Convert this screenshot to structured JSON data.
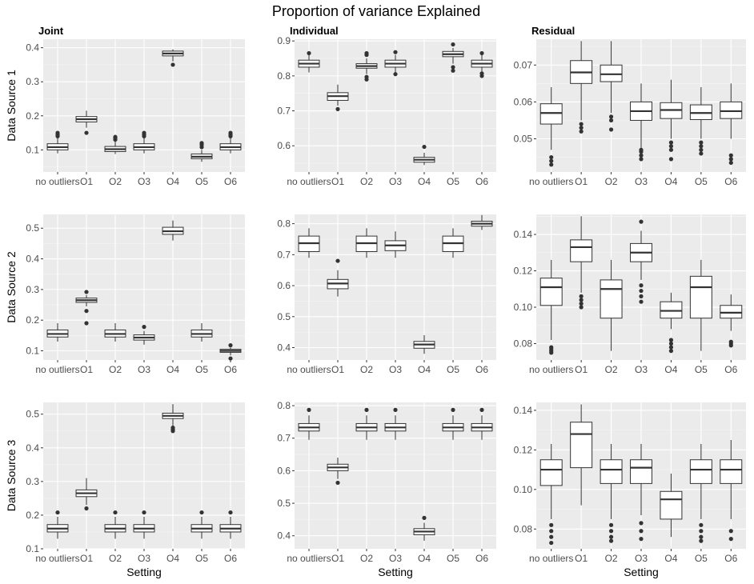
{
  "title": "Proportion of variance Explained",
  "columns": [
    "Joint",
    "Individual",
    "Residual"
  ],
  "rows": [
    "Data Source 1",
    "Data Source 2",
    "Data Source 3"
  ],
  "xlabel": "Setting",
  "colors": {
    "panel_bg": "#ebebeb",
    "box_fill": "#ffffff",
    "box_line": "#333333",
    "tick_text": "#4d4d4d"
  },
  "chart_data": [
    {
      "type": "box",
      "facet_col": "Joint",
      "facet_row": "Data Source 1",
      "categories": [
        "no outliers",
        "O1",
        "O2",
        "O3",
        "O4",
        "O5",
        "O6"
      ],
      "yticks": [
        0.1,
        0.2,
        0.3,
        0.4
      ],
      "ylim": [
        0.035,
        0.425
      ],
      "boxes": [
        {
          "min": 0.09,
          "q1": 0.1,
          "median": 0.108,
          "q3": 0.118,
          "max": 0.135,
          "outliers": [
            0.14,
            0.145,
            0.15
          ]
        },
        {
          "min": 0.165,
          "q1": 0.182,
          "median": 0.19,
          "q3": 0.198,
          "max": 0.215,
          "outliers": [
            0.15
          ]
        },
        {
          "min": 0.088,
          "q1": 0.095,
          "median": 0.102,
          "q3": 0.11,
          "max": 0.125,
          "outliers": [
            0.13,
            0.135,
            0.138
          ]
        },
        {
          "min": 0.09,
          "q1": 0.1,
          "median": 0.108,
          "q3": 0.118,
          "max": 0.135,
          "outliers": [
            0.14,
            0.145,
            0.15
          ]
        },
        {
          "min": 0.36,
          "q1": 0.376,
          "median": 0.383,
          "q3": 0.39,
          "max": 0.395,
          "outliers": [
            0.35
          ]
        },
        {
          "min": 0.065,
          "q1": 0.074,
          "median": 0.08,
          "q3": 0.088,
          "max": 0.1,
          "outliers": [
            0.108,
            0.115,
            0.12
          ]
        },
        {
          "min": 0.09,
          "q1": 0.1,
          "median": 0.108,
          "q3": 0.118,
          "max": 0.135,
          "outliers": [
            0.14,
            0.145,
            0.15
          ]
        }
      ]
    },
    {
      "type": "box",
      "facet_col": "Individual",
      "facet_row": "Data Source 1",
      "categories": [
        "no outliers",
        "O1",
        "O2",
        "O3",
        "O4",
        "O5",
        "O6"
      ],
      "yticks": [
        0.6,
        0.7,
        0.8,
        0.9
      ],
      "ylim": [
        0.525,
        0.905
      ],
      "boxes": [
        {
          "min": 0.81,
          "q1": 0.825,
          "median": 0.835,
          "q3": 0.845,
          "max": 0.86,
          "outliers": [
            0.865
          ]
        },
        {
          "min": 0.715,
          "q1": 0.73,
          "median": 0.742,
          "q3": 0.752,
          "max": 0.775,
          "outliers": [
            0.705
          ]
        },
        {
          "min": 0.805,
          "q1": 0.822,
          "median": 0.828,
          "q3": 0.835,
          "max": 0.85,
          "outliers": [
            0.79,
            0.797,
            0.86,
            0.865
          ]
        },
        {
          "min": 0.81,
          "q1": 0.825,
          "median": 0.835,
          "q3": 0.845,
          "max": 0.86,
          "outliers": [
            0.805,
            0.868
          ]
        },
        {
          "min": 0.545,
          "q1": 0.553,
          "median": 0.56,
          "q3": 0.567,
          "max": 0.58,
          "outliers": [
            0.597
          ]
        },
        {
          "min": 0.835,
          "q1": 0.855,
          "median": 0.862,
          "q3": 0.87,
          "max": 0.88,
          "outliers": [
            0.815,
            0.825,
            0.89
          ]
        },
        {
          "min": 0.81,
          "q1": 0.825,
          "median": 0.835,
          "q3": 0.845,
          "max": 0.86,
          "outliers": [
            0.8,
            0.807,
            0.865
          ]
        }
      ]
    },
    {
      "type": "box",
      "facet_col": "Residual",
      "facet_row": "Data Source 1",
      "categories": [
        "no outliers",
        "O1",
        "O2",
        "O3",
        "O4",
        "O5",
        "O6"
      ],
      "yticks": [
        0.05,
        0.06,
        0.07
      ],
      "ylim": [
        0.041,
        0.077
      ],
      "boxes": [
        {
          "min": 0.047,
          "q1": 0.054,
          "median": 0.057,
          "q3": 0.0595,
          "max": 0.064,
          "outliers": [
            0.043,
            0.044,
            0.045
          ]
        },
        {
          "min": 0.055,
          "q1": 0.065,
          "median": 0.068,
          "q3": 0.0712,
          "max": 0.0765,
          "outliers": [
            0.052,
            0.053,
            0.054
          ]
        },
        {
          "min": 0.057,
          "q1": 0.0655,
          "median": 0.0675,
          "q3": 0.07,
          "max": 0.0765,
          "outliers": [
            0.0525,
            0.055,
            0.056
          ]
        },
        {
          "min": 0.0475,
          "q1": 0.055,
          "median": 0.0575,
          "q3": 0.06,
          "max": 0.065,
          "outliers": [
            0.0445,
            0.0455,
            0.0465,
            0.047
          ]
        },
        {
          "min": 0.05,
          "q1": 0.0555,
          "median": 0.0578,
          "q3": 0.0598,
          "max": 0.066,
          "outliers": [
            0.0445,
            0.047,
            0.048,
            0.049
          ]
        },
        {
          "min": 0.05,
          "q1": 0.0552,
          "median": 0.057,
          "q3": 0.0592,
          "max": 0.064,
          "outliers": [
            0.046,
            0.047,
            0.048,
            0.049
          ]
        },
        {
          "min": 0.05,
          "q1": 0.0555,
          "median": 0.0575,
          "q3": 0.06,
          "max": 0.065,
          "outliers": [
            0.0435,
            0.0445,
            0.0455
          ]
        }
      ]
    },
    {
      "type": "box",
      "facet_col": "Joint",
      "facet_row": "Data Source 2",
      "categories": [
        "no outliers",
        "O1",
        "O2",
        "O3",
        "O4",
        "O5",
        "O6"
      ],
      "yticks": [
        0.1,
        0.2,
        0.3,
        0.4,
        0.5
      ],
      "ylim": [
        0.07,
        0.545
      ],
      "boxes": [
        {
          "min": 0.13,
          "q1": 0.145,
          "median": 0.155,
          "q3": 0.168,
          "max": 0.19,
          "outliers": []
        },
        {
          "min": 0.245,
          "q1": 0.258,
          "median": 0.265,
          "q3": 0.272,
          "max": 0.282,
          "outliers": [
            0.19,
            0.23,
            0.292
          ]
        },
        {
          "min": 0.13,
          "q1": 0.145,
          "median": 0.155,
          "q3": 0.168,
          "max": 0.19,
          "outliers": []
        },
        {
          "min": 0.12,
          "q1": 0.135,
          "median": 0.143,
          "q3": 0.152,
          "max": 0.165,
          "outliers": [
            0.178
          ]
        },
        {
          "min": 0.46,
          "q1": 0.48,
          "median": 0.49,
          "q3": 0.503,
          "max": 0.525,
          "outliers": []
        },
        {
          "min": 0.13,
          "q1": 0.145,
          "median": 0.155,
          "q3": 0.168,
          "max": 0.19,
          "outliers": []
        },
        {
          "min": 0.085,
          "q1": 0.095,
          "median": 0.1,
          "q3": 0.105,
          "max": 0.11,
          "outliers": [
            0.075,
            0.118
          ]
        }
      ]
    },
    {
      "type": "box",
      "facet_col": "Individual",
      "facet_row": "Data Source 2",
      "categories": [
        "no outliers",
        "O1",
        "O2",
        "O3",
        "O4",
        "O5",
        "O6"
      ],
      "yticks": [
        0.4,
        0.5,
        0.6,
        0.7,
        0.8
      ],
      "ylim": [
        0.36,
        0.83
      ],
      "boxes": [
        {
          "min": 0.69,
          "q1": 0.71,
          "median": 0.737,
          "q3": 0.76,
          "max": 0.785,
          "outliers": []
        },
        {
          "min": 0.565,
          "q1": 0.59,
          "median": 0.607,
          "q3": 0.62,
          "max": 0.65,
          "outliers": [
            0.68
          ]
        },
        {
          "min": 0.69,
          "q1": 0.71,
          "median": 0.737,
          "q3": 0.76,
          "max": 0.785,
          "outliers": []
        },
        {
          "min": 0.69,
          "q1": 0.713,
          "median": 0.73,
          "q3": 0.745,
          "max": 0.775,
          "outliers": []
        },
        {
          "min": 0.38,
          "q1": 0.398,
          "median": 0.41,
          "q3": 0.42,
          "max": 0.44,
          "outliers": []
        },
        {
          "min": 0.69,
          "q1": 0.71,
          "median": 0.737,
          "q3": 0.76,
          "max": 0.785,
          "outliers": []
        },
        {
          "min": 0.78,
          "q1": 0.792,
          "median": 0.8,
          "q3": 0.808,
          "max": 0.828,
          "outliers": []
        }
      ]
    },
    {
      "type": "box",
      "facet_col": "Residual",
      "facet_row": "Data Source 2",
      "categories": [
        "no outliers",
        "O1",
        "O2",
        "O3",
        "O4",
        "O5",
        "O6"
      ],
      "yticks": [
        0.08,
        0.1,
        0.12,
        0.14
      ],
      "ylim": [
        0.071,
        0.151
      ],
      "boxes": [
        {
          "min": 0.082,
          "q1": 0.101,
          "median": 0.111,
          "q3": 0.116,
          "max": 0.126,
          "outliers": [
            0.075,
            0.076,
            0.077,
            0.078
          ]
        },
        {
          "min": 0.108,
          "q1": 0.125,
          "median": 0.133,
          "q3": 0.137,
          "max": 0.15,
          "outliers": [
            0.1,
            0.102,
            0.104,
            0.106
          ]
        },
        {
          "min": 0.076,
          "q1": 0.094,
          "median": 0.11,
          "q3": 0.115,
          "max": 0.126,
          "outliers": []
        },
        {
          "min": 0.115,
          "q1": 0.125,
          "median": 0.13,
          "q3": 0.135,
          "max": 0.142,
          "outliers": [
            0.103,
            0.106,
            0.109,
            0.112,
            0.147
          ]
        },
        {
          "min": 0.088,
          "q1": 0.094,
          "median": 0.098,
          "q3": 0.103,
          "max": 0.108,
          "outliers": [
            0.076,
            0.078,
            0.08,
            0.082
          ]
        },
        {
          "min": 0.076,
          "q1": 0.094,
          "median": 0.111,
          "q3": 0.117,
          "max": 0.126,
          "outliers": []
        },
        {
          "min": 0.087,
          "q1": 0.094,
          "median": 0.097,
          "q3": 0.101,
          "max": 0.107,
          "outliers": [
            0.079,
            0.08,
            0.081
          ]
        }
      ]
    },
    {
      "type": "box",
      "facet_col": "Joint",
      "facet_row": "Data Source 3",
      "categories": [
        "no outliers",
        "O1",
        "O2",
        "O3",
        "O4",
        "O5",
        "O6"
      ],
      "yticks": [
        0.1,
        0.2,
        0.3,
        0.4,
        0.5
      ],
      "ylim": [
        0.1,
        0.535
      ],
      "boxes": [
        {
          "min": 0.13,
          "q1": 0.15,
          "median": 0.16,
          "q3": 0.172,
          "max": 0.195,
          "outliers": [
            0.208
          ]
        },
        {
          "min": 0.23,
          "q1": 0.255,
          "median": 0.265,
          "q3": 0.275,
          "max": 0.31,
          "outliers": [
            0.22
          ]
        },
        {
          "min": 0.13,
          "q1": 0.15,
          "median": 0.16,
          "q3": 0.172,
          "max": 0.195,
          "outliers": [
            0.208
          ]
        },
        {
          "min": 0.13,
          "q1": 0.15,
          "median": 0.16,
          "q3": 0.172,
          "max": 0.195,
          "outliers": [
            0.208
          ]
        },
        {
          "min": 0.465,
          "q1": 0.487,
          "median": 0.495,
          "q3": 0.503,
          "max": 0.53,
          "outliers": [
            0.45,
            0.455,
            0.46
          ]
        },
        {
          "min": 0.13,
          "q1": 0.15,
          "median": 0.16,
          "q3": 0.172,
          "max": 0.195,
          "outliers": [
            0.208
          ]
        },
        {
          "min": 0.13,
          "q1": 0.15,
          "median": 0.16,
          "q3": 0.172,
          "max": 0.195,
          "outliers": [
            0.208
          ]
        }
      ]
    },
    {
      "type": "box",
      "facet_col": "Individual",
      "facet_row": "Data Source 3",
      "categories": [
        "no outliers",
        "O1",
        "O2",
        "O3",
        "O4",
        "O5",
        "O6"
      ],
      "yticks": [
        0.4,
        0.5,
        0.6,
        0.7,
        0.8
      ],
      "ylim": [
        0.36,
        0.81
      ],
      "boxes": [
        {
          "min": 0.695,
          "q1": 0.722,
          "median": 0.733,
          "q3": 0.745,
          "max": 0.77,
          "outliers": [
            0.787
          ]
        },
        {
          "min": 0.575,
          "q1": 0.6,
          "median": 0.61,
          "q3": 0.62,
          "max": 0.64,
          "outliers": [
            0.563
          ]
        },
        {
          "min": 0.695,
          "q1": 0.722,
          "median": 0.733,
          "q3": 0.745,
          "max": 0.77,
          "outliers": [
            0.787
          ]
        },
        {
          "min": 0.695,
          "q1": 0.722,
          "median": 0.733,
          "q3": 0.745,
          "max": 0.77,
          "outliers": [
            0.787
          ]
        },
        {
          "min": 0.385,
          "q1": 0.403,
          "median": 0.413,
          "q3": 0.422,
          "max": 0.44,
          "outliers": [
            0.455
          ]
        },
        {
          "min": 0.695,
          "q1": 0.722,
          "median": 0.733,
          "q3": 0.745,
          "max": 0.77,
          "outliers": [
            0.787
          ]
        },
        {
          "min": 0.695,
          "q1": 0.722,
          "median": 0.733,
          "q3": 0.745,
          "max": 0.77,
          "outliers": [
            0.787
          ]
        }
      ]
    },
    {
      "type": "box",
      "facet_col": "Residual",
      "facet_row": "Data Source 3",
      "categories": [
        "no outliers",
        "O1",
        "O2",
        "O3",
        "O4",
        "O5",
        "O6"
      ],
      "yticks": [
        0.08,
        0.1,
        0.12,
        0.14
      ],
      "ylim": [
        0.07,
        0.144
      ],
      "boxes": [
        {
          "min": 0.085,
          "q1": 0.102,
          "median": 0.11,
          "q3": 0.115,
          "max": 0.123,
          "outliers": [
            0.073,
            0.076,
            0.079,
            0.082
          ]
        },
        {
          "min": 0.092,
          "q1": 0.111,
          "median": 0.128,
          "q3": 0.134,
          "max": 0.143,
          "outliers": []
        },
        {
          "min": 0.085,
          "q1": 0.103,
          "median": 0.11,
          "q3": 0.115,
          "max": 0.123,
          "outliers": [
            0.074,
            0.076,
            0.079,
            0.082
          ]
        },
        {
          "min": 0.087,
          "q1": 0.103,
          "median": 0.111,
          "q3": 0.115,
          "max": 0.123,
          "outliers": [
            0.075,
            0.079,
            0.083
          ]
        },
        {
          "min": 0.076,
          "q1": 0.085,
          "median": 0.095,
          "q3": 0.099,
          "max": 0.108,
          "outliers": []
        },
        {
          "min": 0.085,
          "q1": 0.103,
          "median": 0.11,
          "q3": 0.115,
          "max": 0.123,
          "outliers": [
            0.074,
            0.076,
            0.079,
            0.082
          ]
        },
        {
          "min": 0.085,
          "q1": 0.103,
          "median": 0.11,
          "q3": 0.115,
          "max": 0.125,
          "outliers": [
            0.075,
            0.079
          ]
        }
      ]
    }
  ]
}
